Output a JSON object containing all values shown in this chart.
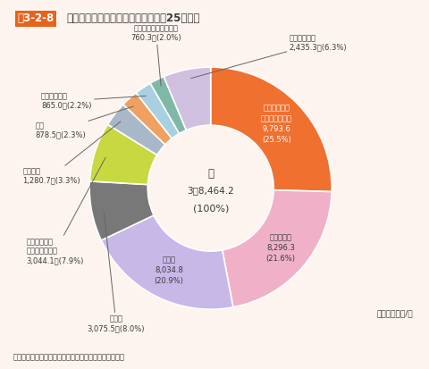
{
  "title_prefix": "図3-2-8",
  "title_main": "　産業廃棄物の業種別排出量（平成25年度）",
  "center_line1": "計",
  "center_line2": "3億8,464.2",
  "center_line3": "(100%)",
  "source": "資料：環境省「産業廃棄物排出・処理状況調査報告書」",
  "unit": "単位：万トン/年",
  "background_color": "#fdf4ef",
  "title_prefix_color": "#e8621a",
  "text_color": "#3a3a3a",
  "segments": [
    {
      "label": "電気・ガス・\n熱供給・水道業",
      "value": 9793.6,
      "pct": "(25.5%)",
      "color": "#f07030",
      "label_color": "#ffffff"
    },
    {
      "label": "農業、林業",
      "value": 8296.3,
      "pct": "(21.6%)",
      "color": "#f0b0c8",
      "label_color": "#ffffff"
    },
    {
      "label": "建設業",
      "value": 8034.8,
      "pct": "(20.9%)",
      "color": "#c8b8e8",
      "label_color": "#3a3a3a"
    },
    {
      "label": "鉄鋼業",
      "value": 3075.5,
      "pct": "(8.0%)",
      "color": "#787878",
      "label_color": "#ffffff"
    },
    {
      "label": "パルプ・紙・\n紙加工品製造業",
      "value": 3044.1,
      "pct": "(7.9%)",
      "color": "#c8d840",
      "label_color": "#3a3a3a"
    },
    {
      "label": "化学工業",
      "value": 1280.7,
      "pct": "(3.3%)",
      "color": "#a8b8c8",
      "label_color": "#3a3a3a"
    },
    {
      "label": "鉱業",
      "value": 878.5,
      "pct": "(2.3%)",
      "color": "#f0a060",
      "label_color": "#3a3a3a"
    },
    {
      "label": "食料品製造業",
      "value": 865.0,
      "pct": "(2.2%)",
      "color": "#a8d0e0",
      "label_color": "#3a3a3a"
    },
    {
      "label": "窯業・土石製品製造業",
      "value": 760.3,
      "pct": "(2.0%)",
      "color": "#80b8a8",
      "label_color": "#3a3a3a"
    },
    {
      "label": "その他の業種",
      "value": 2435.3,
      "pct": "(6.3%)",
      "color": "#d0c0e0",
      "label_color": "#3a3a3a"
    }
  ],
  "value_labels": [
    "9,793.6",
    "8,296.3",
    "8,034.8",
    "3,075.5",
    "3,044.1",
    "1,280.7",
    "878.5",
    "865.0",
    "760.3",
    "2,435.3"
  ]
}
